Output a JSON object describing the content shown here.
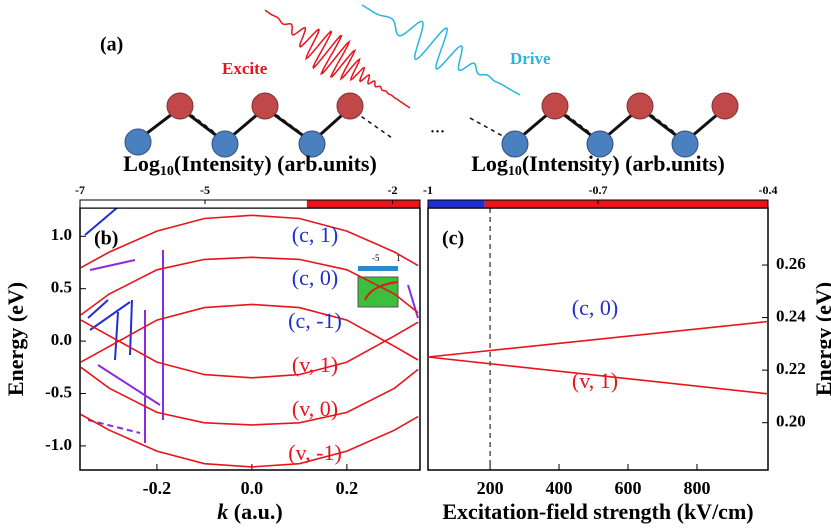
{
  "figure_a": {
    "label": "(a)",
    "excite": "Excite",
    "drive": "Drive",
    "ellipsis": "..."
  },
  "chart_data": [
    {
      "type": "line",
      "panel_label": "(b)",
      "ylabel": "Energy (eV)",
      "xlabel_italic": "k",
      "xlabel": "(a.u.)",
      "xlim": [
        -0.362,
        0.354
      ],
      "ylim": [
        -1.23,
        1.27
      ],
      "xticks": [
        {
          "value": -0.2,
          "label": "-0.2"
        },
        {
          "value": 0,
          "label": "0.0"
        },
        {
          "value": 0.2,
          "label": "0.2"
        }
      ],
      "yticks": [
        {
          "value": -1,
          "label": "-1.0"
        },
        -0.5,
        {
          "value": 0,
          "label": "0.0"
        },
        0.5,
        {
          "value": 1,
          "label": "1.0"
        }
      ],
      "y_axis": "left",
      "x": [
        -0.36,
        -0.3,
        -0.2,
        -0.1,
        0,
        0.1,
        0.2,
        0.3,
        0.35
      ],
      "series": [
        {
          "name": "(c, 1)",
          "color": "#e8141c",
          "label_color": "#1f2fd0",
          "values": [
            0.7,
            0.85,
            1.05,
            1.17,
            1.2,
            1.17,
            1.05,
            0.85,
            0.72
          ]
        },
        {
          "name": "(c, 0)",
          "color": "#e8141c",
          "label_color": "#1f2fd0",
          "values": [
            0.25,
            0.45,
            0.68,
            0.78,
            0.8,
            0.78,
            0.68,
            0.45,
            0.27
          ]
        },
        {
          "name": "(c, -1)",
          "color": "#e8141c",
          "label_color": "#1f2fd0",
          "values": [
            -0.2,
            -0.05,
            0.2,
            0.32,
            0.35,
            0.32,
            0.2,
            -0.05,
            -0.18
          ]
        },
        {
          "name": "(v, 1)",
          "color": "#e8141c",
          "label_color": "#e8141c",
          "values": [
            0.2,
            0.05,
            -0.2,
            -0.32,
            -0.35,
            -0.32,
            -0.2,
            0.05,
            0.18
          ]
        },
        {
          "name": "(v, 0)",
          "color": "#e8141c",
          "label_color": "#e8141c",
          "values": [
            -0.25,
            -0.45,
            -0.68,
            -0.78,
            -0.8,
            -0.78,
            -0.68,
            -0.45,
            -0.27
          ]
        },
        {
          "name": "(v, -1)",
          "color": "#e8141c",
          "label_color": "#e8141c",
          "values": [
            -0.7,
            -0.85,
            -1.05,
            -1.17,
            -1.2,
            -1.17,
            -1.05,
            -0.85,
            -0.72
          ]
        }
      ],
      "inset_ticks": [
        -5,
        1
      ],
      "colorbar": {
        "title_parts": [
          "Log",
          "10",
          "(Intensity) (arb.units)"
        ],
        "lim": [
          -7,
          -1.56
        ],
        "split": -3.37,
        "colors": [
          "#ffffff",
          "#e8141c"
        ],
        "ticks": [
          -7,
          -5,
          -2
        ]
      }
    },
    {
      "type": "line",
      "panel_label": "(c)",
      "ylabel": "Energy (eV)",
      "xlabel": "Excitation-field strength (kV/cm)",
      "xlim": [
        20,
        1006
      ],
      "ylim": [
        0.182,
        0.2817
      ],
      "xticks": [
        200,
        400,
        600,
        800
      ],
      "yticks": [
        {
          "value": 0.2,
          "label": "0.20"
        },
        0.22,
        0.24,
        0.26
      ],
      "y_axis": "right",
      "marker_x": 200,
      "x": [
        20,
        1006
      ],
      "series": [
        {
          "name": "(c, 0)",
          "color": "#e8141c",
          "label_color": "#1f2fd0",
          "values": [
            0.225,
            0.2385
          ]
        },
        {
          "name": "(v, 1)",
          "color": "#e8141c",
          "label_color": "#e8141c",
          "values": [
            0.225,
            0.211
          ]
        }
      ],
      "colorbar": {
        "title_parts": [
          "Log",
          "10",
          "(Intensity) (arb.units)"
        ],
        "lim": [
          -1,
          -0.4
        ],
        "split": -0.9,
        "colors": [
          "#1f2fd0",
          "#e8141c"
        ],
        "ticks": [
          -1,
          -0.7,
          -0.4
        ]
      }
    }
  ]
}
